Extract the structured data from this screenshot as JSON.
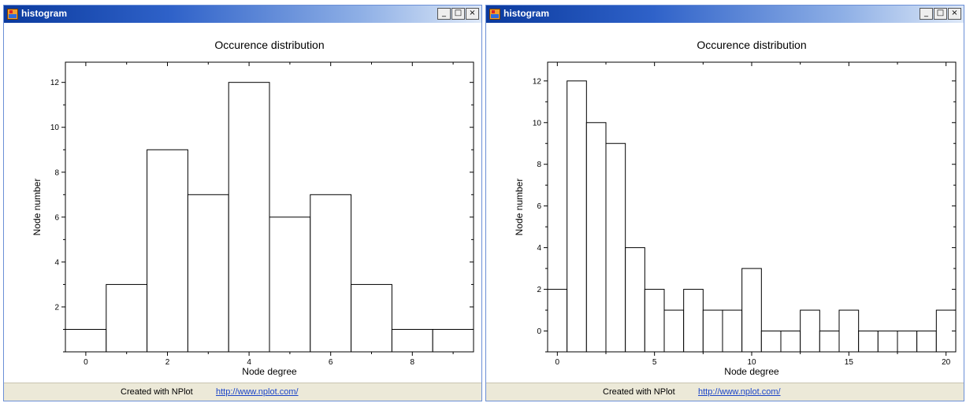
{
  "windows": [
    {
      "title": "histogram",
      "controls": {
        "minimize": "_",
        "maximize": "□",
        "close": "×"
      },
      "footer": {
        "credit": "Created with NPlot",
        "link": "http://www.nplot.com/"
      }
    },
    {
      "title": "histogram",
      "controls": {
        "minimize": "_",
        "maximize": "□",
        "close": "×"
      },
      "footer": {
        "credit": "Created with NPlot",
        "link": "http://www.nplot.com/"
      }
    }
  ],
  "chart_data": [
    {
      "type": "bar",
      "title": "Occurence distribution",
      "xlabel": "Node degree",
      "ylabel": "Node number",
      "x": [
        0,
        1,
        2,
        3,
        4,
        5,
        6,
        7,
        8,
        9
      ],
      "values": [
        1,
        3,
        9,
        7,
        12,
        6,
        7,
        3,
        1,
        1
      ],
      "bar_width": 1,
      "xlim": [
        -0.5,
        9.5
      ],
      "ylim": [
        0,
        12.9
      ],
      "xticks": [
        0,
        2,
        4,
        6,
        8
      ],
      "yticks": [
        2,
        4,
        6,
        8,
        10,
        12
      ],
      "grid": false,
      "legend": "none"
    },
    {
      "type": "bar",
      "title": "Occurence distribution",
      "xlabel": "Node degree",
      "ylabel": "Node number",
      "x": [
        0,
        1,
        2,
        3,
        4,
        5,
        6,
        7,
        8,
        9,
        10,
        11,
        12,
        13,
        14,
        15,
        16,
        17,
        18,
        19,
        20
      ],
      "values": [
        2,
        12,
        10,
        9,
        4,
        2,
        1,
        2,
        1,
        1,
        3,
        0,
        0,
        1,
        0,
        1,
        0,
        0,
        0,
        0,
        1
      ],
      "bar_width": 1,
      "xlim": [
        -0.5,
        20.5
      ],
      "ylim": [
        -1,
        12.9
      ],
      "xticks": [
        0,
        5,
        10,
        15,
        20
      ],
      "yticks": [
        0,
        2,
        4,
        6,
        8,
        10,
        12
      ],
      "grid": false,
      "legend": "none"
    }
  ]
}
